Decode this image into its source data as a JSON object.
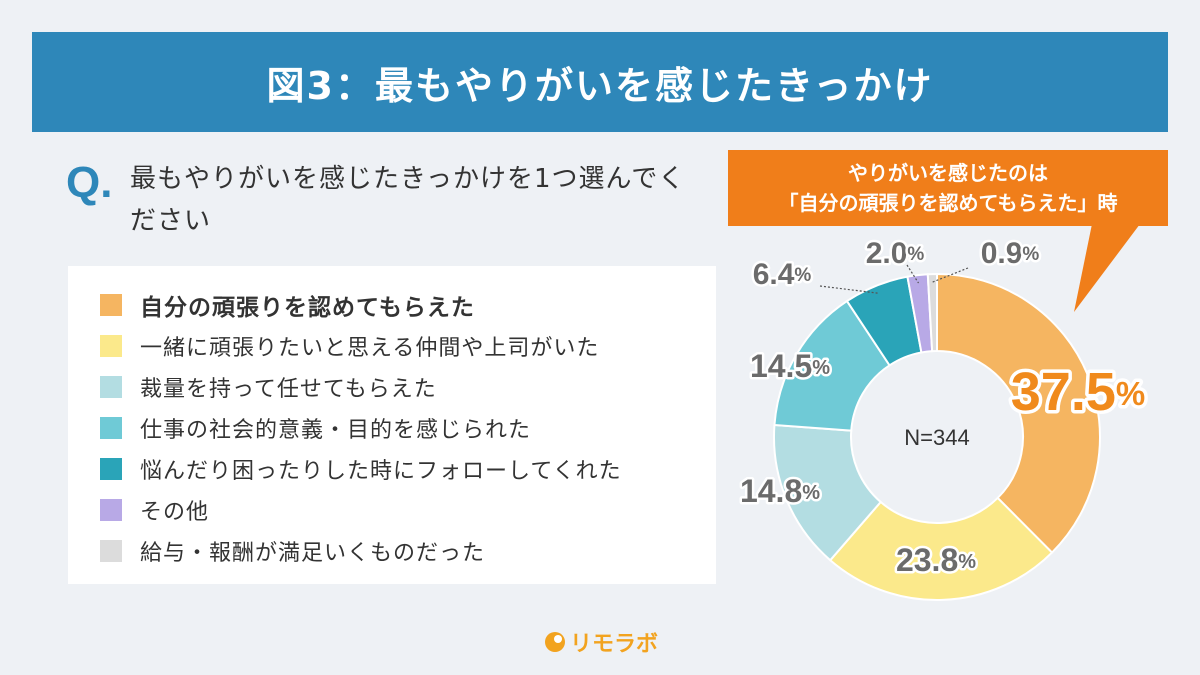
{
  "title": "図3：最もやりがいを感じたきっかけ",
  "question": {
    "mark": "Q.",
    "text": "最もやりがいを感じたきっかけを1つ選んでください"
  },
  "callout": {
    "line1": "やりがいを感じたのは",
    "line2": "「自分の頑張りを認めてもらえた」時"
  },
  "brand": {
    "name": "リモラボ",
    "icon": "brand-logo-icon"
  },
  "chart_data": {
    "type": "pie",
    "subtype": "donut",
    "center_label": "N=344",
    "unit": "%",
    "series": [
      {
        "name": "自分の頑張りを認めてもらえた",
        "value": 37.5,
        "label": "37.5",
        "color": "#f5b561",
        "highlight": true
      },
      {
        "name": "一緒に頑張りたいと思える仲間や上司がいた",
        "value": 23.8,
        "label": "23.8",
        "color": "#fbe98b"
      },
      {
        "name": "裁量を持って任せてもらえた",
        "value": 14.8,
        "label": "14.8",
        "color": "#b3dde2"
      },
      {
        "name": "仕事の社会的意義・目的を感じられた",
        "value": 14.5,
        "label": "14.5",
        "color": "#6fcad6"
      },
      {
        "name": "悩んだり困ったりした時にフォローしてくれた",
        "value": 6.4,
        "label": "6.4",
        "color": "#2aa4b8"
      },
      {
        "name": "その他",
        "value": 2.0,
        "label": "2.0",
        "color": "#b8a9e6"
      },
      {
        "name": "給与・報酬が満足いくものだった",
        "value": 0.9,
        "label": "0.9",
        "color": "#dcdcdc"
      }
    ]
  },
  "legend_labels": [
    "自分の頑張りを認めてもらえた",
    "一緒に頑張りたいと思える仲間や上司がいた",
    "裁量を持って任せてもらえた",
    "仕事の社会的意義・目的を感じられた",
    "悩んだり困ったりした時にフォローしてくれた",
    "その他",
    "給与・報酬が満足いくものだった"
  ],
  "colors": {
    "title_bg": "#2e87b9",
    "callout_bg": "#f07e1a",
    "brand": "#f2a31f",
    "background": "#eef1f5"
  }
}
